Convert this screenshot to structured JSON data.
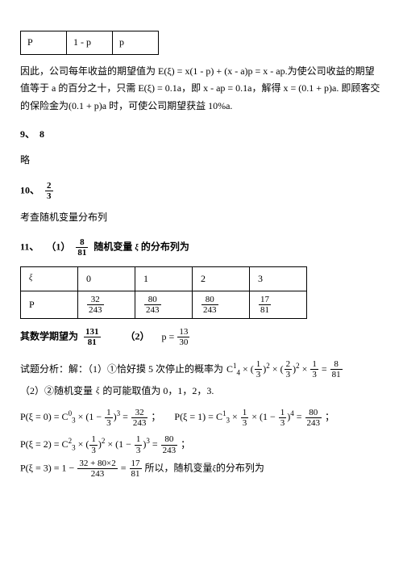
{
  "table1": {
    "cells": [
      "P",
      "1 - p",
      "p"
    ]
  },
  "para1": "因此，公司每年收益的期望值为 E(ξ) = x(1 - p) + (x - a)p = x - ap.为使公司收益的期望值等于 a 的百分之十，只需 E(ξ) = 0.1a，即 x - ap = 0.1a，解得 x = (0.1 + p)a. 即顾客交的保险金为(0.1 + p)a 时，可使公司期望获益 10%a.",
  "q9": {
    "label": "9、",
    "ans": "8",
    "note": "略"
  },
  "q10": {
    "label": "10、",
    "frac_num": "2",
    "frac_den": "3",
    "note": "考查随机变量分布列"
  },
  "q11": {
    "label": "11、",
    "part1_label": "（1）",
    "frac_num": "8",
    "frac_den": "81",
    "text1": "随机变量",
    "xi": "ξ",
    "text2": "的分布列为"
  },
  "dist_table": {
    "header": [
      "ξ",
      "0",
      "1",
      "2",
      "3"
    ],
    "row_label": "P",
    "fracs": [
      {
        "n": "32",
        "d": "243"
      },
      {
        "n": "80",
        "d": "243"
      },
      {
        "n": "80",
        "d": "243"
      },
      {
        "n": "17",
        "d": "81"
      }
    ]
  },
  "expect": {
    "label": "其数学期望为",
    "frac_n": "131",
    "frac_d": "81",
    "part2": "（2）",
    "p_eq": "p =",
    "p_n": "13",
    "p_d": "30"
  },
  "analysis": {
    "prefix": "试题分析：解：（1）①恰好摸 5 次停止的概率为",
    "f1": {
      "c1": "C",
      "c1up": "1",
      "c1dn": "4",
      "text": " × (",
      "a_n": "1",
      "a_d": "3",
      "pow1": "2",
      "mid": " × (",
      "b_n": "2",
      "b_d": "3",
      "pow2": "2",
      "tail": " × ",
      "c_n": "1",
      "c_d": "3",
      "eq": " = ",
      "r_n": "8",
      "r_d": "81"
    },
    "part2_intro": "（2）②随机变量",
    "xi": "ξ",
    "part2_tail": "的可能取值为 0，1，2，3.",
    "p0": {
      "lhs": "P(ξ = 0) = C",
      "up": "0",
      "dn": "3",
      "mid": " × (1 − ",
      "f_n": "1",
      "f_d": "3",
      "pow": "3",
      "eq": " = ",
      "r_n": "32",
      "r_d": "243",
      "end": " ；"
    },
    "p1": {
      "lhs": "P(ξ = 1) = C",
      "up": "1",
      "dn": "3",
      "mid1": " × ",
      "a_n": "1",
      "a_d": "3",
      "mid2": " × (1 − ",
      "b_n": "1",
      "b_d": "3",
      "pow": "4",
      "eq": " = ",
      "r_n": "80",
      "r_d": "243",
      "end": " ；"
    },
    "p2": {
      "lhs": "P(ξ = 2) = C",
      "up": "2",
      "dn": "3",
      "mid1": " × (",
      "a_n": "1",
      "a_d": "3",
      "pow1": "2",
      "mid2": " × (1 − ",
      "b_n": "1",
      "b_d": "3",
      "pow2": "3",
      "eq": " = ",
      "r_n": "80",
      "r_d": "243",
      "end": " ；"
    },
    "p3": {
      "lhs": "P(ξ = 3) = 1 − ",
      "n": "32 + 80×2",
      "d": "243",
      "eq": " = ",
      "r_n": "17",
      "r_d": "81",
      "tail": " 所以，随机变量",
      "xi": "ξ",
      "tail2": "的分布列为"
    }
  }
}
